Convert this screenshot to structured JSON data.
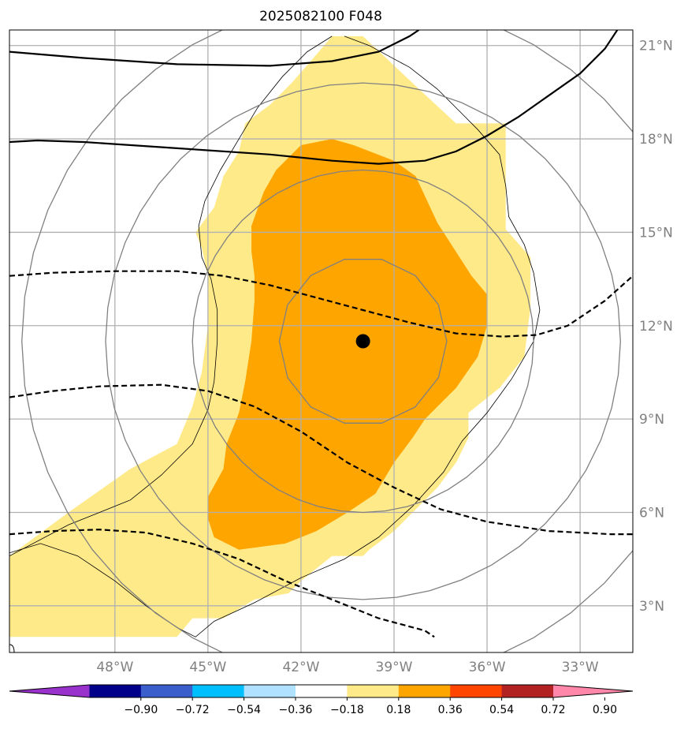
{
  "chart_data": {
    "type": "map",
    "title": "2025082100 F048",
    "lon_range": [
      -51.4,
      -31.3
    ],
    "lat_range": [
      1.5,
      21.5
    ],
    "lon_ticks": [
      {
        "value": -48,
        "label": "48°W"
      },
      {
        "value": -45,
        "label": "45°W"
      },
      {
        "value": -42,
        "label": "42°W"
      },
      {
        "value": -39,
        "label": "39°W"
      },
      {
        "value": -36,
        "label": "36°W"
      },
      {
        "value": -33,
        "label": "33°W"
      }
    ],
    "lat_ticks": [
      {
        "value": 3,
        "label": "3°N"
      },
      {
        "value": 6,
        "label": "6°N"
      },
      {
        "value": 9,
        "label": "9°N"
      },
      {
        "value": 12,
        "label": "12°N"
      },
      {
        "value": 15,
        "label": "15°N"
      },
      {
        "value": 18,
        "label": "18°N"
      },
      {
        "value": 21,
        "label": "21°N"
      }
    ],
    "grid": true,
    "center": {
      "lon": -40.0,
      "lat": 11.5
    },
    "range_ring_radii_deg": [
      2.7,
      5.5,
      8.3,
      11.0
    ],
    "filled_contours": [
      {
        "level": "0.18–0.36",
        "color": "#ffea8a",
        "polygon": [
          [
            -41,
            21.3
          ],
          [
            -40,
            21.3
          ],
          [
            -38.3,
            19.7
          ],
          [
            -37,
            18.5
          ],
          [
            -35.4,
            18.5
          ],
          [
            -35.4,
            17.5
          ],
          [
            -35.4,
            15.1
          ],
          [
            -34.6,
            14.2
          ],
          [
            -34.6,
            12.6
          ],
          [
            -34.8,
            11.0
          ],
          [
            -35.6,
            10.0
          ],
          [
            -36.6,
            9.2
          ],
          [
            -36.6,
            8.4
          ],
          [
            -37,
            7.6
          ],
          [
            -37.6,
            6.8
          ],
          [
            -38.4,
            6.0
          ],
          [
            -39,
            5.4
          ],
          [
            -39.8,
            4.8
          ],
          [
            -40,
            4.6
          ],
          [
            -41,
            4.6
          ],
          [
            -42,
            3.8
          ],
          [
            -42.4,
            3.4
          ],
          [
            -43.5,
            3.2
          ],
          [
            -44.5,
            2.6
          ],
          [
            -45.5,
            2.6
          ],
          [
            -46,
            2.0
          ],
          [
            -51.4,
            2.0
          ],
          [
            -51.4,
            4.6
          ],
          [
            -49.5,
            6.0
          ],
          [
            -47.5,
            7.4
          ],
          [
            -46,
            8.2
          ],
          [
            -45.5,
            9.4
          ],
          [
            -45.2,
            10.5
          ],
          [
            -45.0,
            12.0
          ],
          [
            -45.0,
            13.6
          ],
          [
            -45.2,
            14.5
          ],
          [
            -45.4,
            15.0
          ],
          [
            -44.8,
            15.8
          ],
          [
            -44.5,
            16.8
          ],
          [
            -44.0,
            17.6
          ],
          [
            -43.8,
            18.5
          ],
          [
            -43.0,
            19.1
          ],
          [
            -42.3,
            19.8
          ],
          [
            -41.6,
            20.6
          ]
        ]
      },
      {
        "level": "0.36–0.54",
        "color": "#ffa500",
        "polygon": [
          [
            -42,
            17.8
          ],
          [
            -41,
            18.0
          ],
          [
            -40.3,
            17.8
          ],
          [
            -39,
            17.3
          ],
          [
            -38.3,
            16.8
          ],
          [
            -37.6,
            15.3
          ],
          [
            -36.5,
            13.6
          ],
          [
            -36.0,
            13.0
          ],
          [
            -36.0,
            12.0
          ],
          [
            -36.3,
            11.0
          ],
          [
            -37.0,
            10.0
          ],
          [
            -38.0,
            9.0
          ],
          [
            -38.4,
            8.4
          ],
          [
            -39.0,
            7.6
          ],
          [
            -39.6,
            6.6
          ],
          [
            -40.5,
            6.0
          ],
          [
            -41.5,
            5.4
          ],
          [
            -42.5,
            5.0
          ],
          [
            -44,
            4.8
          ],
          [
            -44.8,
            5.2
          ],
          [
            -45.0,
            5.8
          ],
          [
            -45.0,
            6.5
          ],
          [
            -44.5,
            7.4
          ],
          [
            -44.4,
            8.2
          ],
          [
            -44.0,
            9.2
          ],
          [
            -43.8,
            10.2
          ],
          [
            -43.6,
            11.5
          ],
          [
            -43.5,
            12.8
          ],
          [
            -43.5,
            13.6
          ],
          [
            -43.6,
            14.4
          ],
          [
            -43.6,
            15.2
          ],
          [
            -43.2,
            16.3
          ],
          [
            -42.8,
            17.0
          ]
        ]
      }
    ],
    "solid_lines": [
      [
        [
          -51.4,
          20.8
        ],
        [
          -49,
          20.6
        ],
        [
          -46,
          20.4
        ],
        [
          -43,
          20.35
        ],
        [
          -41,
          20.5
        ],
        [
          -39.5,
          20.8
        ],
        [
          -38.5,
          21.3
        ],
        [
          -38.2,
          21.5
        ]
      ],
      [
        [
          -51.4,
          17.9
        ],
        [
          -50.5,
          17.95
        ],
        [
          -49,
          17.9
        ],
        [
          -46,
          17.7
        ],
        [
          -43,
          17.5
        ],
        [
          -41,
          17.3
        ],
        [
          -39.5,
          17.2
        ],
        [
          -38,
          17.3
        ],
        [
          -37,
          17.6
        ],
        [
          -36,
          18.1
        ],
        [
          -35,
          18.7
        ],
        [
          -34,
          19.4
        ],
        [
          -33,
          20.1
        ],
        [
          -32.2,
          20.9
        ],
        [
          -31.8,
          21.5
        ]
      ]
    ],
    "dashed_lines": [
      [
        [
          -51.4,
          13.6
        ],
        [
          -50,
          13.7
        ],
        [
          -48,
          13.75
        ],
        [
          -46,
          13.75
        ],
        [
          -44.5,
          13.6
        ],
        [
          -43,
          13.3
        ],
        [
          -41.5,
          12.9
        ],
        [
          -40,
          12.5
        ],
        [
          -38.5,
          12.1
        ],
        [
          -37,
          11.75
        ],
        [
          -35.5,
          11.65
        ],
        [
          -34.4,
          11.7
        ],
        [
          -33.4,
          12.0
        ],
        [
          -32.2,
          12.8
        ],
        [
          -31.3,
          13.6
        ]
      ],
      [
        [
          -51.4,
          9.7
        ],
        [
          -50,
          9.9
        ],
        [
          -48.5,
          10.05
        ],
        [
          -46.5,
          10.1
        ],
        [
          -45,
          9.9
        ],
        [
          -43.5,
          9.4
        ],
        [
          -42,
          8.6
        ],
        [
          -40.5,
          7.6
        ],
        [
          -39,
          6.8
        ],
        [
          -37.5,
          6.1
        ],
        [
          -36,
          5.7
        ],
        [
          -34,
          5.4
        ],
        [
          -32,
          5.3
        ],
        [
          -31.3,
          5.3
        ]
      ],
      [
        [
          -51.4,
          5.3
        ],
        [
          -50,
          5.4
        ],
        [
          -48.5,
          5.45
        ],
        [
          -47,
          5.35
        ],
        [
          -45.5,
          5.0
        ],
        [
          -44,
          4.5
        ],
        [
          -42.5,
          3.8
        ],
        [
          -41,
          3.2
        ],
        [
          -39.5,
          2.6
        ],
        [
          -38,
          2.2
        ],
        [
          -37.7,
          2.0
        ]
      ]
    ],
    "thin_outline": [
      [
        -40.6,
        21.3
      ],
      [
        -39.8,
        21.0
      ],
      [
        -38.5,
        20.3
      ],
      [
        -37.6,
        19.6
      ],
      [
        -36.8,
        18.8
      ],
      [
        -36.3,
        18.3
      ],
      [
        -35.6,
        17.5
      ],
      [
        -35.4,
        16.5
      ],
      [
        -35.3,
        15.5
      ],
      [
        -34.8,
        14.6
      ],
      [
        -34.5,
        13.7
      ],
      [
        -34.3,
        12.5
      ],
      [
        -34.5,
        11.5
      ],
      [
        -35.2,
        10.3
      ],
      [
        -36.0,
        9.2
      ],
      [
        -36.8,
        8.3
      ],
      [
        -37.4,
        7.3
      ],
      [
        -38.4,
        6.2
      ],
      [
        -39.5,
        5.2
      ],
      [
        -40.6,
        4.5
      ],
      [
        -42,
        3.9
      ],
      [
        -43.5,
        3.1
      ],
      [
        -44.8,
        2.5
      ],
      [
        -45.4,
        2.0
      ],
      [
        -46,
        2.3
      ],
      [
        -47,
        3.0
      ],
      [
        -48,
        3.8
      ],
      [
        -49.2,
        4.6
      ],
      [
        -50.4,
        5.0
      ],
      [
        -51.4,
        4.7
      ]
    ],
    "thin_outline_2": [
      [
        -51.4,
        4.6
      ],
      [
        -49.5,
        5.6
      ],
      [
        -47.5,
        6.4
      ],
      [
        -46.5,
        7.2
      ],
      [
        -45.5,
        8.2
      ],
      [
        -45.0,
        9.3
      ],
      [
        -44.8,
        10.2
      ],
      [
        -44.7,
        11.5
      ],
      [
        -44.7,
        12.5
      ],
      [
        -44.9,
        13.5
      ],
      [
        -45.2,
        14.2
      ],
      [
        -45.3,
        15.2
      ],
      [
        -45.1,
        16.0
      ],
      [
        -44.6,
        17.0
      ],
      [
        -44.0,
        18.0
      ],
      [
        -43.4,
        19.0
      ],
      [
        -42.6,
        20.0
      ],
      [
        -41.8,
        20.8
      ],
      [
        -41,
        21.3
      ]
    ],
    "colorbar": {
      "colors": [
        "#9932cc",
        "#00008b",
        "#3a5fcd",
        "#00bfff",
        "#b0e2ff",
        "#ffffff",
        "#ffea8a",
        "#ffa500",
        "#ff4500",
        "#b22222",
        "#ff88aa"
      ],
      "ticks": [
        "−0.90",
        "−0.72",
        "−0.54",
        "−0.36",
        "−0.18",
        "0.18",
        "0.36",
        "0.54",
        "0.72",
        "0.90"
      ]
    }
  }
}
